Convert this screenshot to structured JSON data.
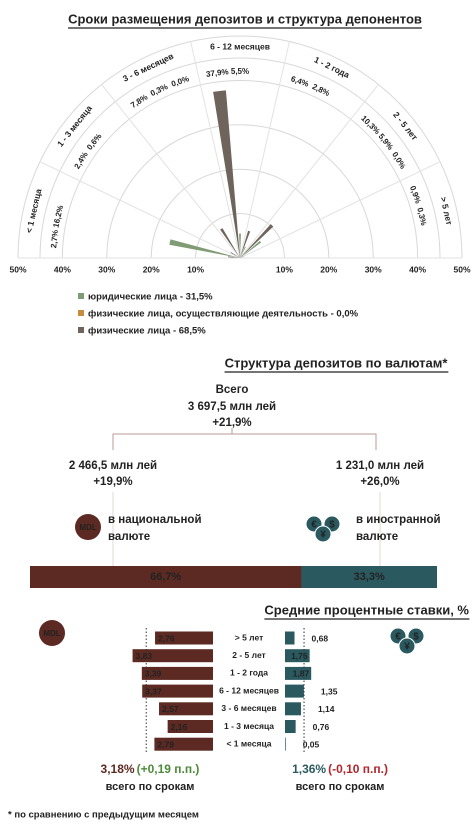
{
  "chart_data": [
    {
      "type": "polar",
      "title": "Сроки размещения депозитов и структура депонентов",
      "categories": [
        "< 1 месяца",
        "1 - 3 месяца",
        "3 - 6 месяцев",
        "6 - 12 месяцев",
        "1 - 2 года",
        "2 - 5 лет",
        "> 5 лет"
      ],
      "series": [
        {
          "name": "юридические лица - 31,5%",
          "color": "#7f9c74",
          "values": [
            16.2,
            0.6,
            0.3,
            5.5,
            2.8,
            5.9,
            0.3
          ],
          "value_labels": [
            "16,2%",
            "0,6%",
            "0,3%",
            "5,5%",
            "2,8%",
            "5,9%",
            "0,3%"
          ]
        },
        {
          "name": "физические лица, осуществляющие деятельность  - 0,0%",
          "color": "#c98b3c",
          "values": [
            null,
            null,
            0,
            null,
            null,
            0,
            null
          ],
          "value_labels": [
            null,
            null,
            "0,0%",
            null,
            null,
            "0,0%",
            null
          ]
        },
        {
          "name": "физические лица - 68,5%",
          "color": "#6e645b",
          "values": [
            2.7,
            2.4,
            7.8,
            37.9,
            6.4,
            10.3,
            0.9
          ],
          "value_labels": [
            "2,7%",
            "2,4%",
            "7,8%",
            "37,9%",
            "6,4%",
            "10,3%",
            "0,9%"
          ]
        }
      ],
      "rlim": [
        0,
        50
      ],
      "rticks": [
        {
          "value": 10,
          "label": "10%"
        },
        {
          "value": 20,
          "label": "20%"
        },
        {
          "value": 30,
          "label": "30%"
        },
        {
          "value": 40,
          "label": "40%"
        },
        {
          "value": 50,
          "label": "50%"
        }
      ]
    },
    {
      "type": "stacked-bar",
      "title": "Структура депозитов по валютам*",
      "total": {
        "label": "Всего",
        "amount": "3 697,5 млн лей",
        "change": "+21,9%"
      },
      "icon_symbols": [
        "€",
        "$",
        "¥"
      ],
      "series": [
        {
          "label": [
            "в национальной",
            "валюте"
          ],
          "amount": "2 466,5 млн лей",
          "change": "+19,9%",
          "value": 66.7,
          "value_label": "66,7%",
          "color": "#5c2a22"
        },
        {
          "label": [
            "в иностранной",
            "валюте"
          ],
          "amount": "1 231,0 млн лей",
          "change": "+26,0%",
          "value": 33.3,
          "value_label": "33,3%",
          "color": "#2a5a60"
        }
      ],
      "xlim": [
        0,
        100
      ]
    },
    {
      "type": "diverging-bar",
      "title": "Средние процентные ставки, %",
      "categories": [
        "> 5 лет",
        "2 - 5 лет",
        "1 - 2 года",
        "6 - 12 месяцев",
        "3 - 6 месяцев",
        "1 - 3 месяца",
        "< 1 месяца"
      ],
      "series": [
        {
          "name": "MDL",
          "color": "#5c2a22",
          "values": [
            2.76,
            3.83,
            3.39,
            3.37,
            2.57,
            2.16,
            2.79
          ],
          "value_labels": [
            "2,76",
            "3,83",
            "3,39",
            "3,37",
            "2,57",
            "2,16",
            "2,79"
          ],
          "xlim": [
            0,
            4
          ],
          "total": 3.18,
          "total_label": "3,18%",
          "change_label": "(+0,19 п.п.)",
          "change_color": "#4e8a3a",
          "note": "всего по срокам"
        },
        {
          "color": "#2a5a60",
          "values": [
            0.68,
            1.76,
            1.87,
            1.35,
            1.14,
            0.76,
            0.05
          ],
          "value_labels": [
            "0,68",
            "1,76",
            "1,87",
            "1,35",
            "1,14",
            "0,76",
            "0,05"
          ],
          "xlim": [
            0,
            2
          ],
          "total": 1.36,
          "total_label": "1,36%",
          "change_label": "(-0,10 п.п.)",
          "change_color": "#b0262b",
          "note": "всего по срокам"
        }
      ],
      "footnote": "* по сравнению с предыдущим месяцем"
    }
  ]
}
